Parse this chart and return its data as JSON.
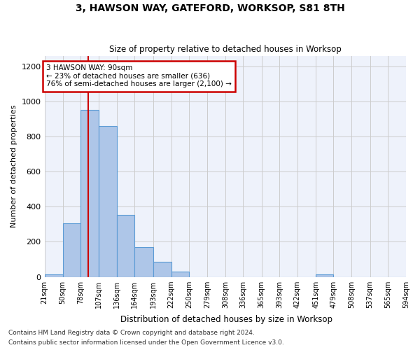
{
  "title": "3, HAWSON WAY, GATEFORD, WORKSOP, S81 8TH",
  "subtitle": "Size of property relative to detached houses in Worksop",
  "xlabel": "Distribution of detached houses by size in Worksop",
  "ylabel": "Number of detached properties",
  "bar_values": [
    15,
    305,
    950,
    860,
    355,
    170,
    85,
    30,
    0,
    0,
    0,
    0,
    0,
    0,
    0,
    15,
    0,
    0,
    0,
    0
  ],
  "bin_labels": [
    "21sqm",
    "50sqm",
    "78sqm",
    "107sqm",
    "136sqm",
    "164sqm",
    "193sqm",
    "222sqm",
    "250sqm",
    "279sqm",
    "308sqm",
    "336sqm",
    "365sqm",
    "393sqm",
    "422sqm",
    "451sqm",
    "479sqm",
    "508sqm",
    "537sqm",
    "565sqm",
    "594sqm"
  ],
  "bar_color": "#aec6e8",
  "bar_edge_color": "#5b9bd5",
  "grid_color": "#cccccc",
  "bg_color": "#eef2fb",
  "annotation_text": "3 HAWSON WAY: 90sqm\n← 23% of detached houses are smaller (636)\n76% of semi-detached houses are larger (2,100) →",
  "annotation_box_color": "#ffffff",
  "annotation_border_color": "#cc0000",
  "property_line_x": 90,
  "ylim": [
    0,
    1260
  ],
  "yticks": [
    0,
    200,
    400,
    600,
    800,
    1000,
    1200
  ],
  "footnote1": "Contains HM Land Registry data © Crown copyright and database right 2024.",
  "footnote2": "Contains public sector information licensed under the Open Government Licence v3.0.",
  "bin_edges": [
    21,
    50,
    78,
    107,
    136,
    164,
    193,
    222,
    250,
    279,
    308,
    336,
    365,
    393,
    422,
    451,
    479,
    508,
    537,
    565,
    594
  ]
}
